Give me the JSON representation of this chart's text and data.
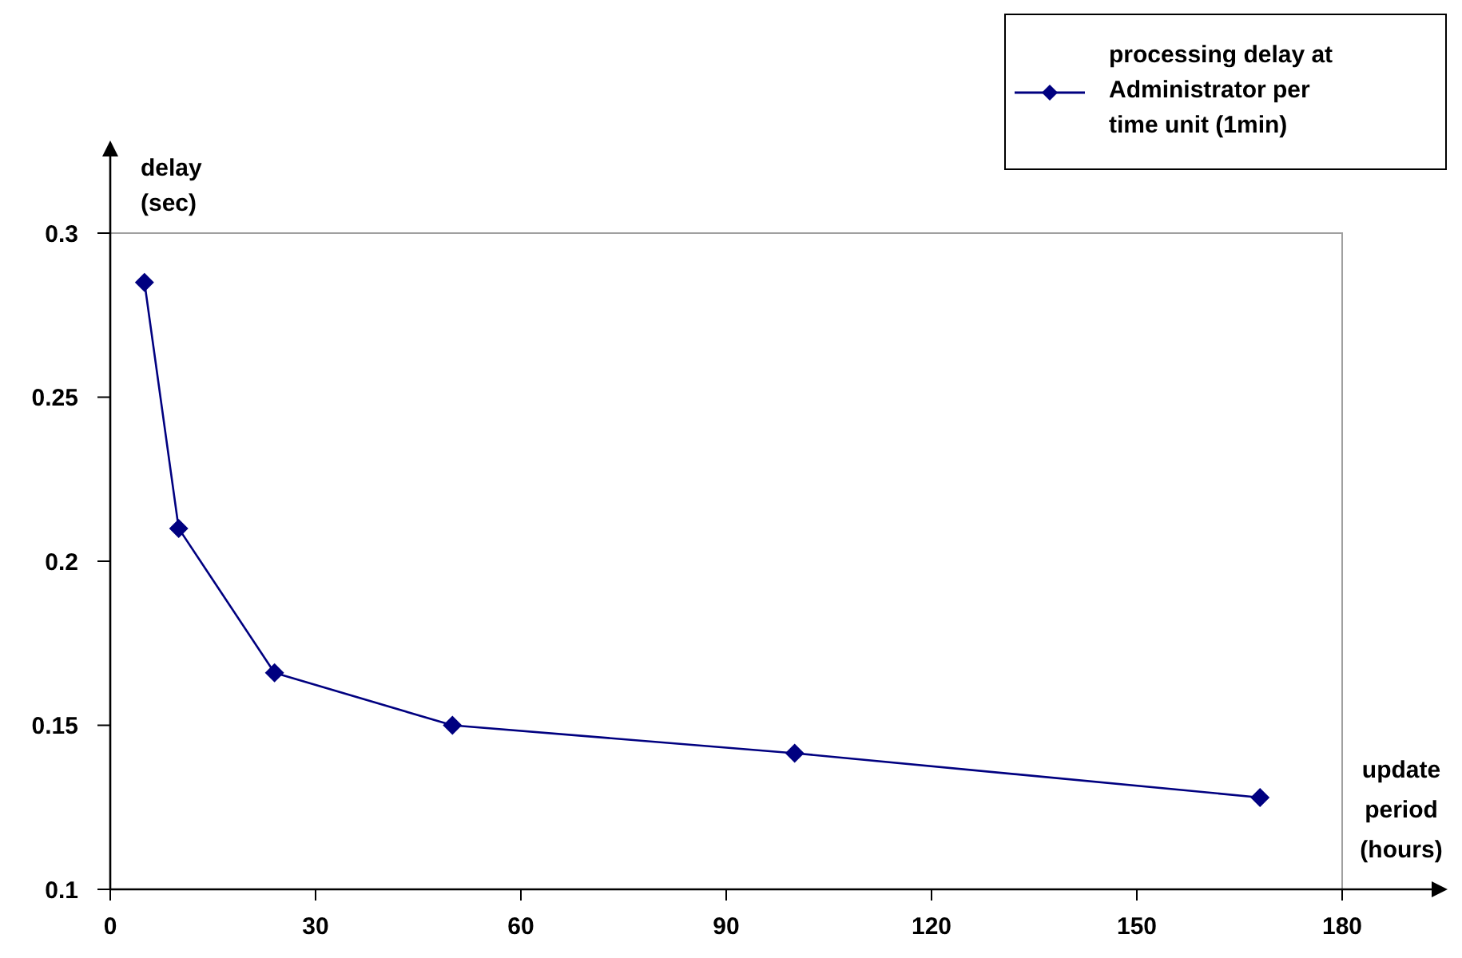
{
  "chart_data": {
    "type": "line",
    "xlabel": "update period (hours)",
    "ylabel": "delay (sec)",
    "x": [
      5,
      10,
      24,
      50,
      100,
      168
    ],
    "series": [
      {
        "name": "processing delay at Administrator per time unit (1min)",
        "color": "#000080",
        "values": [
          0.285,
          0.21,
          0.166,
          0.15,
          0.1415,
          0.128
        ]
      }
    ],
    "xlim": [
      0,
      180
    ],
    "xticks": [
      0,
      30,
      60,
      90,
      120,
      150,
      180
    ],
    "ylim": [
      0.1,
      0.3
    ],
    "yticks": [
      0.1,
      0.15,
      0.2,
      0.25,
      0.3
    ],
    "grid": false,
    "legend": "top right",
    "marker": "diamond",
    "line_style": "solid"
  }
}
